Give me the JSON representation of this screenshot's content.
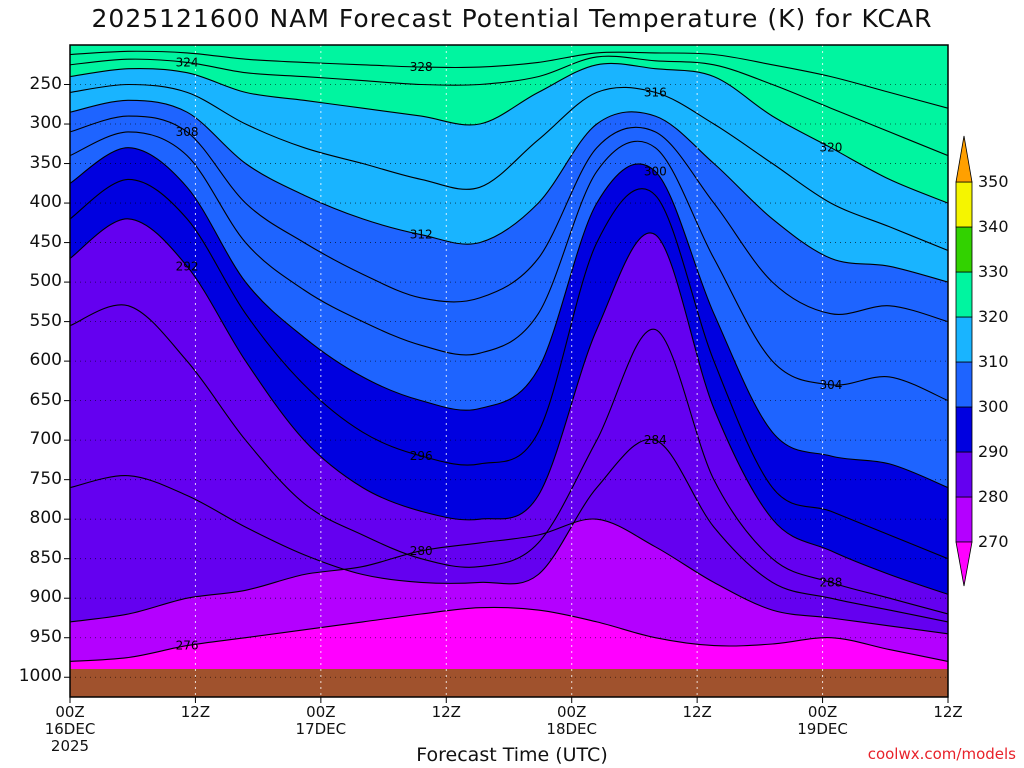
{
  "chart_data": {
    "type": "heatmap",
    "title": "2025121600 NAM Forecast Potential Temperature (K) for KCAR",
    "xlabel": "Forecast Time (UTC)",
    "ylabel": "",
    "y_ticks": [
      "250",
      "300",
      "350",
      "400",
      "450",
      "500",
      "550",
      "600",
      "650",
      "700",
      "750",
      "800",
      "850",
      "900",
      "950",
      "1000"
    ],
    "y_values": [
      250,
      300,
      350,
      400,
      450,
      500,
      550,
      600,
      650,
      700,
      750,
      800,
      850,
      900,
      950,
      1000
    ],
    "y_range": [
      200,
      1025
    ],
    "x_range_hours": [
      0,
      84
    ],
    "x_ticks": [
      {
        "hour": 0,
        "lines": [
          "00Z",
          "16DEC",
          "2025"
        ]
      },
      {
        "hour": 12,
        "lines": [
          "12Z"
        ]
      },
      {
        "hour": 24,
        "lines": [
          "00Z",
          "17DEC"
        ]
      },
      {
        "hour": 36,
        "lines": [
          "12Z"
        ]
      },
      {
        "hour": 48,
        "lines": [
          "00Z",
          "18DEC"
        ]
      },
      {
        "hour": 60,
        "lines": [
          "12Z"
        ]
      },
      {
        "hour": 72,
        "lines": [
          "00Z",
          "19DEC"
        ]
      },
      {
        "hour": 84,
        "lines": [
          "12Z"
        ]
      }
    ],
    "colorbar": {
      "levels": [
        270,
        280,
        290,
        300,
        310,
        320,
        330,
        340,
        350
      ],
      "labels": [
        "270",
        "280",
        "290",
        "300",
        "310",
        "320",
        "330",
        "340",
        "350"
      ],
      "colors": [
        "#ff00ff",
        "#b400ff",
        "#6400f0",
        "#0000e0",
        "#1e64ff",
        "#19b4ff",
        "#00f5a0",
        "#32d200",
        "#f5f500",
        "#ffa000"
      ],
      "extends": "both"
    },
    "isentropes": [
      {
        "theta": 276,
        "label": "276",
        "p": [
          980,
          975,
          960,
          950,
          940,
          930,
          920,
          912,
          915,
          930,
          950,
          960,
          958,
          950,
          965,
          980
        ]
      },
      {
        "theta": 280,
        "label": "280",
        "p": [
          930,
          920,
          900,
          890,
          870,
          860,
          840,
          830,
          820,
          800,
          835,
          880,
          915,
          925,
          935,
          945
        ]
      },
      {
        "theta": 284,
        "label": "284",
        "p": [
          760,
          745,
          770,
          810,
          845,
          870,
          880,
          880,
          870,
          760,
          700,
          810,
          880,
          900,
          915,
          930
        ]
      },
      {
        "theta": 288,
        "label": "288",
        "p": [
          555,
          530,
          600,
          700,
          780,
          820,
          850,
          860,
          830,
          700,
          560,
          750,
          850,
          880,
          900,
          920
        ]
      },
      {
        "theta": 292,
        "label": "292",
        "p": [
          470,
          420,
          480,
          600,
          700,
          760,
          790,
          800,
          770,
          560,
          440,
          660,
          800,
          840,
          870,
          895
        ]
      },
      {
        "theta": 296,
        "label": "296",
        "p": [
          420,
          370,
          420,
          540,
          630,
          690,
          720,
          730,
          690,
          450,
          390,
          600,
          760,
          790,
          820,
          850
        ]
      },
      {
        "theta": 300,
        "label": "300",
        "p": [
          375,
          330,
          380,
          500,
          570,
          620,
          650,
          660,
          610,
          400,
          360,
          540,
          690,
          720,
          730,
          760
        ]
      },
      {
        "theta": 304,
        "label": "304",
        "p": [
          340,
          310,
          340,
          450,
          510,
          550,
          580,
          590,
          540,
          360,
          330,
          470,
          600,
          630,
          620,
          650
        ]
      },
      {
        "theta": 308,
        "label": "308",
        "p": [
          310,
          290,
          310,
          400,
          450,
          490,
          520,
          520,
          470,
          330,
          310,
          400,
          500,
          540,
          530,
          550
        ]
      },
      {
        "theta": 312,
        "label": "312",
        "p": [
          285,
          270,
          285,
          350,
          390,
          420,
          440,
          450,
          400,
          300,
          290,
          350,
          420,
          470,
          480,
          500
        ]
      },
      {
        "theta": 316,
        "label": "316",
        "p": [
          260,
          250,
          260,
          300,
          330,
          350,
          370,
          380,
          320,
          260,
          260,
          300,
          350,
          400,
          430,
          460
        ]
      },
      {
        "theta": 320,
        "label": "320",
        "p": [
          240,
          230,
          235,
          260,
          270,
          280,
          290,
          300,
          260,
          225,
          230,
          240,
          290,
          330,
          370,
          400
        ]
      },
      {
        "theta": 324,
        "label": "324",
        "p": [
          225,
          218,
          222,
          235,
          240,
          245,
          250,
          250,
          240,
          215,
          220,
          225,
          250,
          280,
          310,
          340
        ]
      },
      {
        "theta": 328,
        "label": "328",
        "p": [
          212,
          208,
          210,
          218,
          222,
          225,
          228,
          228,
          222,
          210,
          210,
          212,
          225,
          240,
          260,
          280
        ]
      }
    ]
  }
}
